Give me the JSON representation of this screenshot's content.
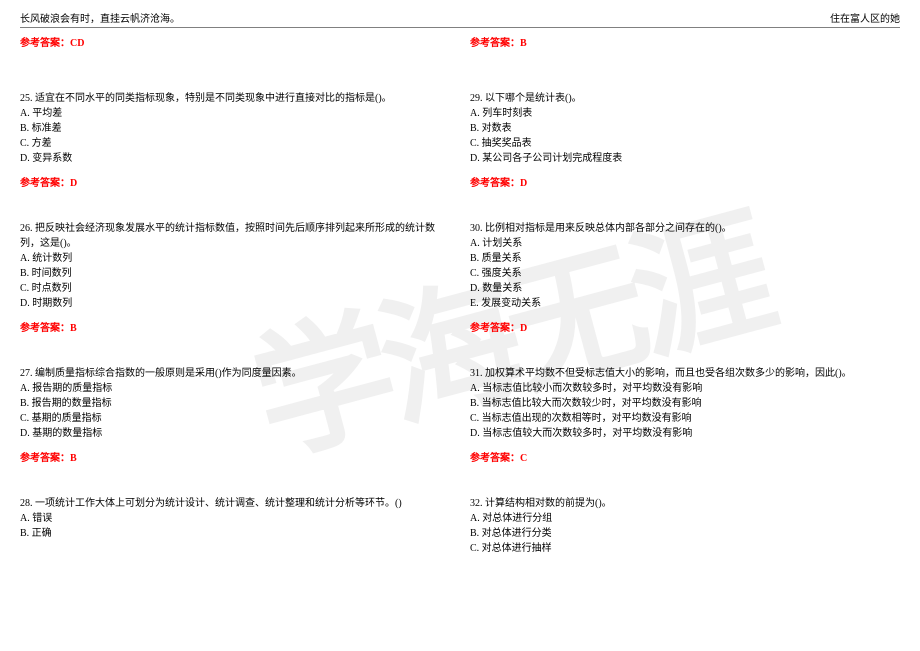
{
  "header": {
    "left": "长风破浪会有时，直挂云帆济沧海。",
    "right": "住在富人区的她"
  },
  "watermark": "学海无涯",
  "colors": {
    "answer": "#ff0000",
    "text": "#000000",
    "border": "#808080",
    "background": "#ffffff"
  },
  "left_column": {
    "top_answer": "参考答案：CD",
    "questions": [
      {
        "number": "25.",
        "text": "适宜在不同水平的同类指标现象，特别是不同类现象中进行直接对比的指标是()。",
        "options": [
          "A. 平均差",
          "B. 标准差",
          "C. 方差",
          "D. 变异系数"
        ],
        "answer": "参考答案：D"
      },
      {
        "number": "26.",
        "text": "把反映社会经济现象发展水平的统计指标数值，按照时间先后顺序排列起来所形成的统计数列，这是()。",
        "options": [
          "A. 统计数列",
          "B. 时间数列",
          "C. 时点数列",
          "D. 时期数列"
        ],
        "answer": "参考答案：B"
      },
      {
        "number": "27.",
        "text": "编制质量指标综合指数的一般原则是采用()作为同度量因素。",
        "options": [
          "A. 报告期的质量指标",
          "B. 报告期的数量指标",
          "C. 基期的质量指标",
          "D. 基期的数量指标"
        ],
        "answer": "参考答案：B"
      },
      {
        "number": "28.",
        "text": "一项统计工作大体上可划分为统计设计、统计调查、统计整理和统计分析等环节。()",
        "options": [
          "A. 错误",
          "B. 正确"
        ],
        "answer": ""
      }
    ]
  },
  "right_column": {
    "top_answer": "参考答案：B",
    "questions": [
      {
        "number": "29.",
        "text": "以下哪个是统计表()。",
        "options": [
          "A. 列车时刻表",
          "B. 对数表",
          "C. 抽奖奖品表",
          "D. 某公司各子公司计划完成程度表"
        ],
        "answer": "参考答案：D"
      },
      {
        "number": "30.",
        "text": "比例相对指标是用来反映总体内部各部分之间存在的()。",
        "options": [
          "A. 计划关系",
          "B. 质量关系",
          "C. 强度关系",
          "D. 数量关系",
          "E. 发展变动关系"
        ],
        "answer": "参考答案：D"
      },
      {
        "number": "31.",
        "text": "加权算术平均数不但受标志值大小的影响，而且也受各组次数多少的影响，因此()。",
        "options": [
          "A. 当标志值比较小而次数较多时，对平均数没有影响",
          "B. 当标志值比较大而次数较少时，对平均数没有影响",
          "C. 当标志值出现的次数相等时，对平均数没有影响",
          "D. 当标志值较大而次数较多时，对平均数没有影响"
        ],
        "answer": "参考答案：C"
      },
      {
        "number": "32.",
        "text": "计算结构相对数的前提为()。",
        "options": [
          "A. 对总体进行分组",
          "B. 对总体进行分类",
          "C. 对总体进行抽样"
        ],
        "answer": ""
      }
    ]
  }
}
